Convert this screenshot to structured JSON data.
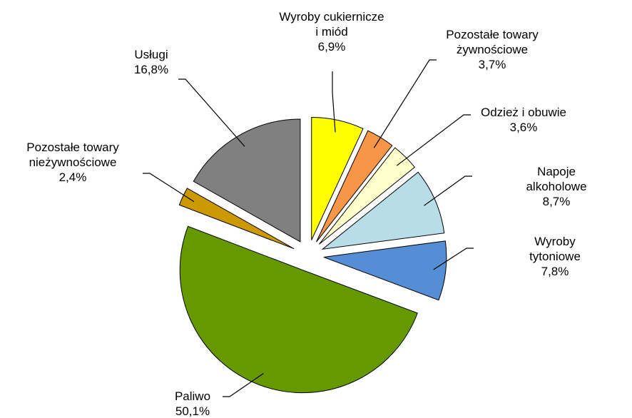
{
  "chart_data": {
    "type": "pie",
    "categories": [
      "Wyroby cukiernicze\ni miód",
      "Pozostałe towary\nżywnościowe",
      "Odzież i obuwie",
      "Napoje alkoholowe",
      "Wyroby tytoniowe",
      "Paliwo",
      "Pozostałe towary\nnieżywnościowe",
      "Usługi"
    ],
    "values": [
      6.9,
      3.7,
      3.6,
      8.7,
      7.8,
      50.1,
      2.4,
      16.8
    ],
    "value_labels": [
      "6,9%",
      "3,7%",
      "3,6%",
      "8,7%",
      "7,8%",
      "50,1%",
      "2,4%",
      "16,8%"
    ],
    "colors": [
      "#ffff00",
      "#f79646",
      "#ffffcc",
      "#b7dde8",
      "#558ed5",
      "#669900",
      "#cc9900",
      "#808080"
    ]
  }
}
